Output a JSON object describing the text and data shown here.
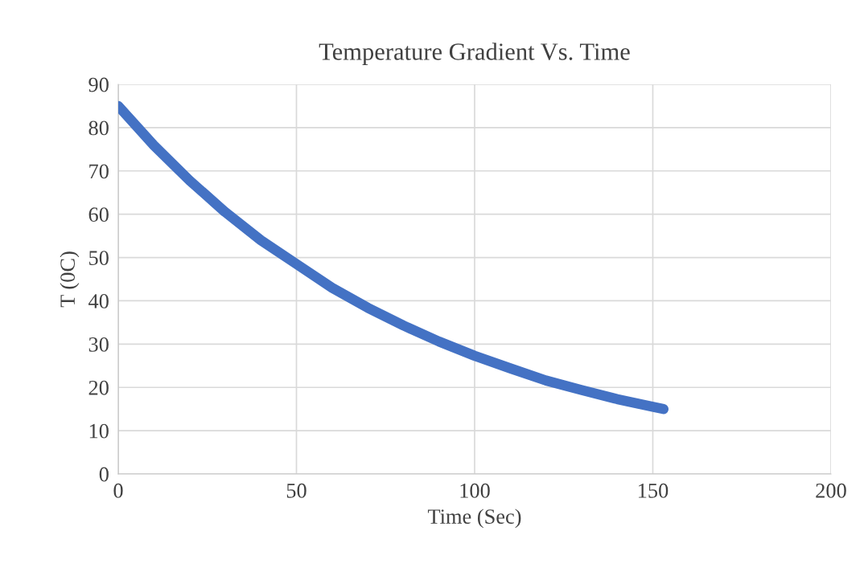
{
  "chart_data": {
    "type": "line",
    "title": "Temperature Gradient Vs. Time",
    "xlabel": "Time (Sec)",
    "ylabel": "T (0C)",
    "x": [
      0,
      10,
      20,
      30,
      40,
      50,
      60,
      70,
      80,
      90,
      100,
      110,
      120,
      130,
      140,
      150,
      153
    ],
    "series": [
      {
        "color": "#4472c4",
        "values": [
          85,
          75.9,
          67.8,
          60.5,
          54.0,
          48.5,
          43.0,
          38.4,
          34.3,
          30.6,
          27.3,
          24.4,
          21.6,
          19.4,
          17.3,
          15.5,
          15
        ]
      }
    ],
    "xlim": [
      0,
      200
    ],
    "xticks": [
      0,
      50,
      100,
      150,
      200
    ],
    "ylim": [
      0,
      90
    ],
    "yticks": [
      0,
      10,
      20,
      30,
      40,
      50,
      60,
      70,
      80,
      90
    ],
    "grid": true,
    "legend": false,
    "line_style": "solid"
  }
}
